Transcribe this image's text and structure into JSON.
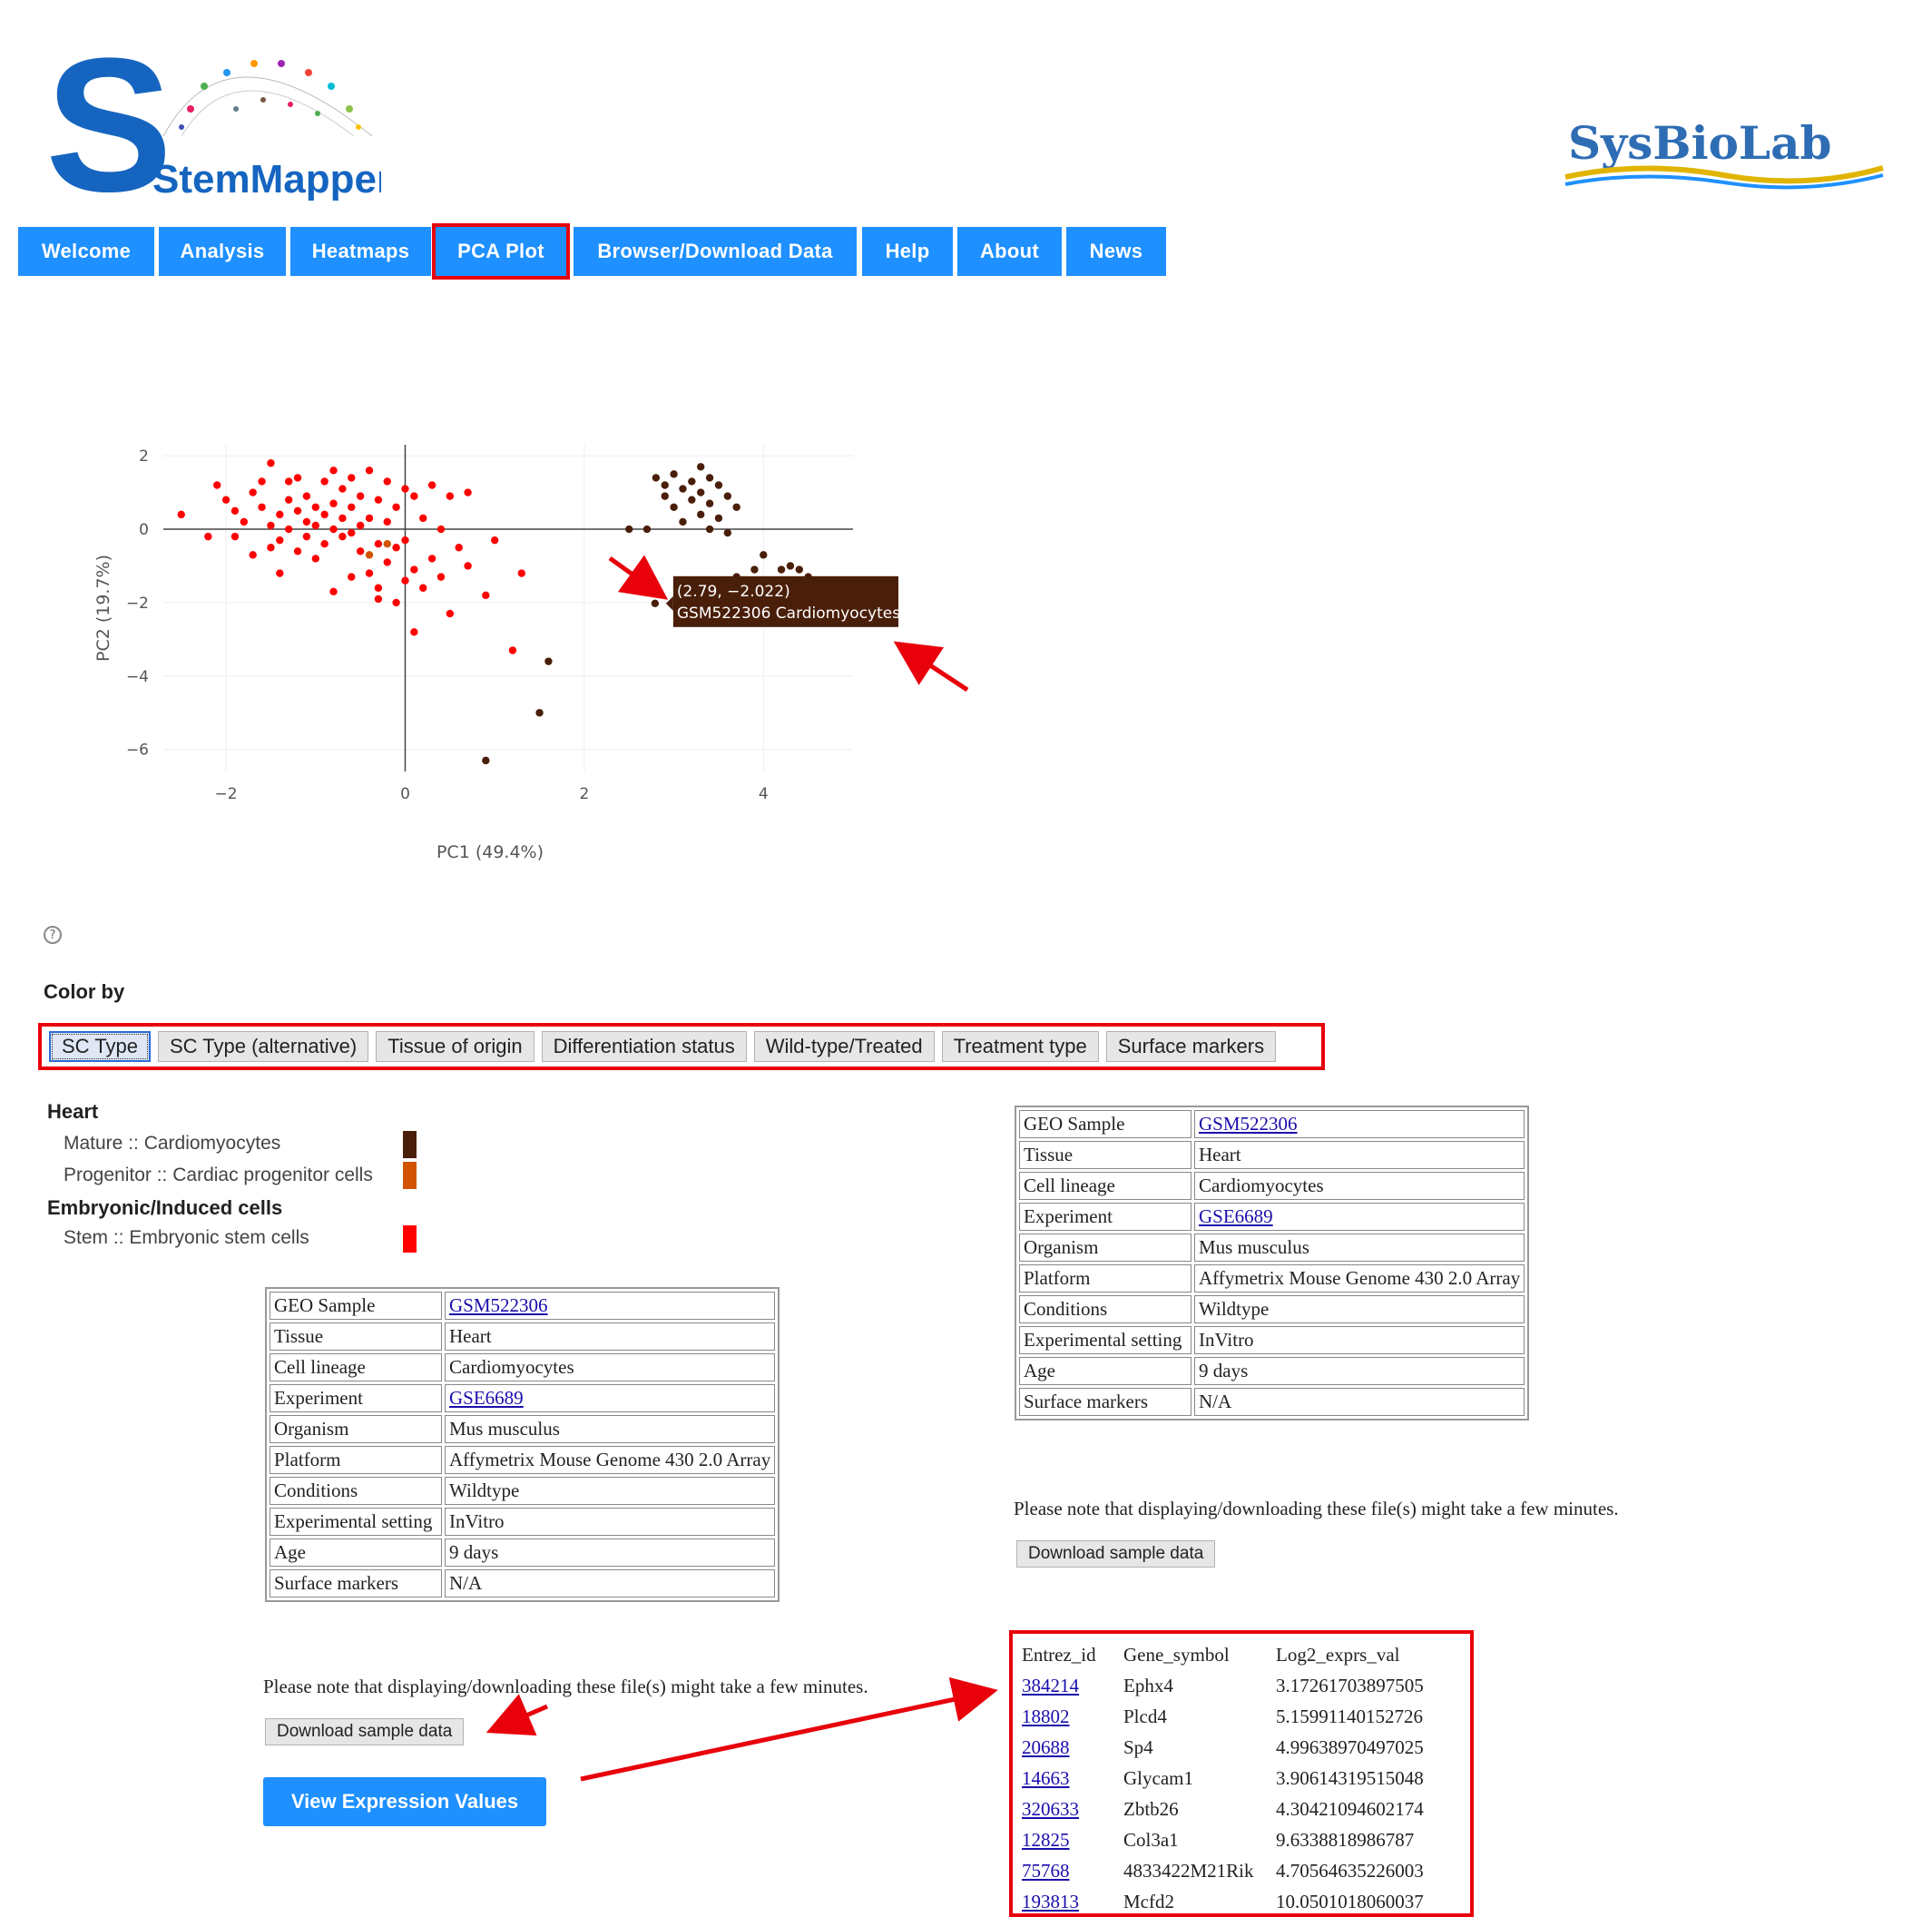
{
  "logos": {
    "stemmapper": "StemMapper",
    "sysbiolab": "SysBioLab"
  },
  "nav": {
    "items": [
      "Welcome",
      "Analysis",
      "Heatmaps",
      "PCA Plot",
      "Browser/Download Data",
      "Help",
      "About",
      "News"
    ],
    "active": "PCA Plot"
  },
  "colors": {
    "nav_blue": "#1e90ff",
    "highlight_red": "#e8000b",
    "cardiomyocytes": "#4a1f0a",
    "cardiac_progenitor": "#d35400",
    "embryonic_stem": "#ff0000"
  },
  "chart_data": {
    "type": "scatter",
    "xlabel": "PC1 (49.4%)",
    "ylabel": "PC2 (19.7%)",
    "xlim": [
      -2.7,
      5
    ],
    "ylim": [
      -6.6,
      2.3
    ],
    "xticks": [
      -2,
      0,
      2,
      4
    ],
    "yticks": [
      2,
      0,
      -2,
      -4,
      -6
    ],
    "xtick_labels": [
      "−2",
      "0",
      "2",
      "4"
    ],
    "ytick_labels": [
      "2",
      "0",
      "−2",
      "−4",
      "−6"
    ],
    "grid": true,
    "series": [
      {
        "name": "Stem :: Embryonic stem cells",
        "color": "#ff0000",
        "points": [
          [
            -2.5,
            0.4
          ],
          [
            -2.2,
            -0.2
          ],
          [
            -2.1,
            1.2
          ],
          [
            -2.0,
            0.8
          ],
          [
            -1.9,
            0.5
          ],
          [
            -1.8,
            0.2
          ],
          [
            -1.9,
            -0.2
          ],
          [
            -1.7,
            1.0
          ],
          [
            -1.6,
            1.3
          ],
          [
            -1.6,
            0.6
          ],
          [
            -1.5,
            -0.5
          ],
          [
            -1.5,
            0.1
          ],
          [
            -1.5,
            1.8
          ],
          [
            -1.4,
            0.4
          ],
          [
            -1.4,
            -0.3
          ],
          [
            -1.3,
            1.3
          ],
          [
            -1.3,
            0.8
          ],
          [
            -1.3,
            0.0
          ],
          [
            -1.2,
            0.5
          ],
          [
            -1.2,
            -0.6
          ],
          [
            -1.2,
            1.4
          ],
          [
            -1.1,
            0.2
          ],
          [
            -1.1,
            -0.2
          ],
          [
            -1.1,
            0.9
          ],
          [
            -1.0,
            0.6
          ],
          [
            -1.0,
            -0.8
          ],
          [
            -1.0,
            0.1
          ],
          [
            -0.9,
            1.3
          ],
          [
            -0.9,
            0.4
          ],
          [
            -0.9,
            -0.4
          ],
          [
            -0.8,
            1.6
          ],
          [
            -0.8,
            0.7
          ],
          [
            -0.8,
            0.0
          ],
          [
            -0.8,
            -1.7
          ],
          [
            -0.7,
            1.1
          ],
          [
            -0.7,
            0.3
          ],
          [
            -0.7,
            -0.2
          ],
          [
            -0.6,
            1.4
          ],
          [
            -0.6,
            0.6
          ],
          [
            -0.6,
            -0.1
          ],
          [
            -0.5,
            0.9
          ],
          [
            -0.5,
            0.1
          ],
          [
            -0.5,
            -0.6
          ],
          [
            -0.4,
            1.6
          ],
          [
            -0.4,
            0.3
          ],
          [
            -0.4,
            -1.2
          ],
          [
            -0.3,
            0.8
          ],
          [
            -0.3,
            -0.4
          ],
          [
            -0.3,
            -1.6
          ],
          [
            -0.2,
            1.3
          ],
          [
            -0.2,
            0.2
          ],
          [
            -0.2,
            -0.9
          ],
          [
            -0.1,
            0.6
          ],
          [
            -0.1,
            -0.5
          ],
          [
            -0.1,
            -2.0
          ],
          [
            0.0,
            1.1
          ],
          [
            0.0,
            -0.3
          ],
          [
            0.0,
            -1.4
          ],
          [
            0.1,
            0.9
          ],
          [
            0.1,
            -1.1
          ],
          [
            0.1,
            -2.8
          ],
          [
            0.2,
            -1.6
          ],
          [
            0.2,
            0.3
          ],
          [
            0.3,
            1.2
          ],
          [
            0.3,
            -0.8
          ],
          [
            0.4,
            0.0
          ],
          [
            0.4,
            -1.3
          ],
          [
            0.5,
            0.9
          ],
          [
            0.5,
            -2.3
          ],
          [
            0.6,
            -0.5
          ],
          [
            0.7,
            1.0
          ],
          [
            0.7,
            -1.0
          ],
          [
            0.9,
            -1.8
          ],
          [
            1.0,
            -0.3
          ],
          [
            1.2,
            -3.3
          ],
          [
            1.3,
            -1.2
          ],
          [
            -0.6,
            -1.3
          ],
          [
            -1.4,
            -1.2
          ],
          [
            -1.7,
            -0.7
          ],
          [
            -0.3,
            -1.9
          ]
        ]
      },
      {
        "name": "Progenitor :: Cardiac progenitor cells",
        "color": "#d35400",
        "points": [
          [
            -0.2,
            -0.4
          ],
          [
            -0.4,
            -0.7
          ]
        ]
      },
      {
        "name": "Mature :: Cardiomyocytes",
        "color": "#4a1f0a",
        "points": [
          [
            2.8,
            1.4
          ],
          [
            2.9,
            1.2
          ],
          [
            2.9,
            0.9
          ],
          [
            3.0,
            1.5
          ],
          [
            3.0,
            0.6
          ],
          [
            3.1,
            1.1
          ],
          [
            3.1,
            0.2
          ],
          [
            3.2,
            1.3
          ],
          [
            3.2,
            0.8
          ],
          [
            3.3,
            1.7
          ],
          [
            3.3,
            1.0
          ],
          [
            3.3,
            0.4
          ],
          [
            3.4,
            1.4
          ],
          [
            3.4,
            0.7
          ],
          [
            3.4,
            0.0
          ],
          [
            3.5,
            1.2
          ],
          [
            3.5,
            0.3
          ],
          [
            3.6,
            0.9
          ],
          [
            3.6,
            -0.1
          ],
          [
            3.7,
            0.6
          ],
          [
            2.7,
            0.0
          ],
          [
            2.5,
            0.0
          ],
          [
            2.79,
            -2.022
          ],
          [
            3.7,
            -1.3
          ],
          [
            3.9,
            -1.1
          ],
          [
            4.0,
            -0.7
          ],
          [
            4.1,
            -1.4
          ],
          [
            4.2,
            -1.1
          ],
          [
            4.3,
            -1.0
          ],
          [
            4.4,
            -1.1
          ],
          [
            4.5,
            -1.3
          ],
          [
            3.8,
            -1.6
          ],
          [
            4.0,
            -1.7
          ],
          [
            1.6,
            -3.6
          ],
          [
            1.5,
            -5.0
          ],
          [
            0.9,
            -6.3
          ]
        ]
      }
    ],
    "tooltip": {
      "coords": "(2.79, −2.022)",
      "label": "GSM522306 Cardiomyocytes",
      "x": 2.79,
      "y": -2.022
    }
  },
  "colorby": {
    "label": "Color by",
    "buttons": [
      "SC Type",
      "SC Type (alternative)",
      "Tissue of origin",
      "Differentiation status",
      "Wild-type/Treated",
      "Treatment type",
      "Surface markers"
    ],
    "active": "SC Type"
  },
  "legend": {
    "groups": [
      {
        "heading": "Heart",
        "items": [
          {
            "label": "Mature :: Cardiomyocytes",
            "color": "#4a1f0a"
          },
          {
            "label": "Progenitor :: Cardiac progenitor cells",
            "color": "#d35400"
          }
        ]
      },
      {
        "heading": "Embryonic/Induced cells",
        "items": [
          {
            "label": "Stem :: Embryonic stem cells",
            "color": "#ff0000"
          }
        ]
      }
    ]
  },
  "sample_info": {
    "rows": [
      {
        "key": "GEO Sample",
        "value": "GSM522306",
        "link": true
      },
      {
        "key": "Tissue",
        "value": "Heart",
        "link": false
      },
      {
        "key": "Cell lineage",
        "value": "Cardiomyocytes",
        "link": false
      },
      {
        "key": "Experiment",
        "value": "GSE6689",
        "link": true
      },
      {
        "key": "Organism",
        "value": "Mus musculus",
        "link": false
      },
      {
        "key": "Platform",
        "value": "Affymetrix Mouse Genome 430 2.0 Array",
        "link": false
      },
      {
        "key": "Conditions",
        "value": "Wildtype",
        "link": false
      },
      {
        "key": "Experimental setting",
        "value": "InVitro",
        "link": false
      },
      {
        "key": "Age",
        "value": "9 days",
        "link": false
      },
      {
        "key": "Surface markers",
        "value": "N/A",
        "link": false
      }
    ],
    "note": "Please note that displaying/downloading these file(s) might take a few minutes.",
    "download_label": "Download sample data",
    "view_expr_label": "View Expression Values"
  },
  "expression": {
    "headers": [
      "Entrez_id",
      "Gene_symbol",
      "Log2_exprs_val"
    ],
    "rows": [
      [
        "384214",
        "Ephx4",
        "3.17261703897505"
      ],
      [
        "18802",
        "Plcd4",
        "5.15991140152726"
      ],
      [
        "20688",
        "Sp4",
        "4.99638970497025"
      ],
      [
        "14663",
        "Glycam1",
        "3.90614319515048"
      ],
      [
        "320633",
        "Zbtb26",
        "4.30421094602174"
      ],
      [
        "12825",
        "Col3a1",
        "9.6338818986787"
      ],
      [
        "75768",
        "4833422M21Rik",
        "4.70564635226003"
      ],
      [
        "193813",
        "Mcfd2",
        "10.0501018060037"
      ]
    ]
  }
}
